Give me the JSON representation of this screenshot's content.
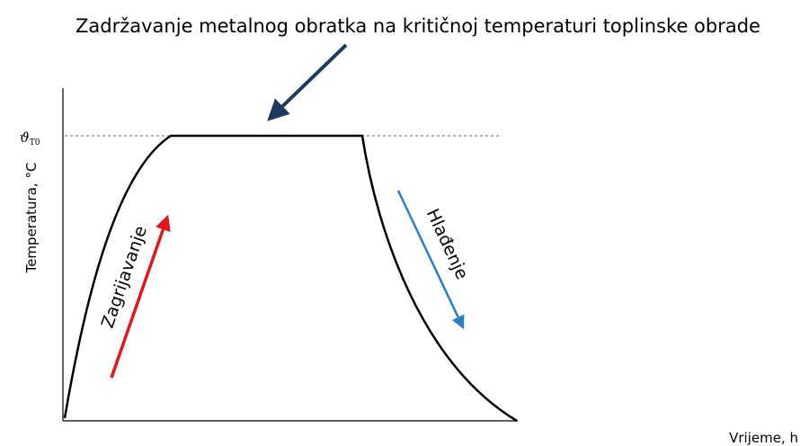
{
  "title": "Zadržavanje metalnog obratka na kritičnoj temperaturi toplinske obrade",
  "y_axis": {
    "label": "Temperatura, °C",
    "level_symbol": "ϑ",
    "level_subscript": "T0"
  },
  "x_axis": {
    "label": "Vrijeme, h"
  },
  "annotations": {
    "heating": "Zagrijavanje",
    "cooling": "Hlađenje"
  }
}
